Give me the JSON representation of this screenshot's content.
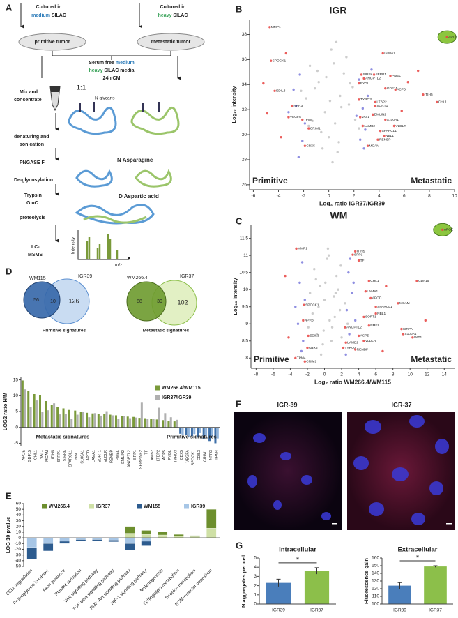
{
  "panels": [
    "A",
    "B",
    "C",
    "D",
    "E",
    "F",
    "G"
  ],
  "diagram": {
    "cultured_left": "Cultured in",
    "medium": "medium",
    "silac": "SILAC",
    "cultured_right": "Cultured in",
    "heavy": "heavy",
    "dish_left": "primitive tumor",
    "dish_right": "metastatic tumor",
    "serum_free": "Serum free",
    "media_medium": "medium",
    "media_heavy": "heavy",
    "silac_media": "SILAC media",
    "cm": "24h CM",
    "mix": "Mix and",
    "concentrate": "concentrate",
    "ratio": "1:1",
    "glycans": "N glycans",
    "denaturing": "denaturing and",
    "sonication": "sonication",
    "pngase": "PNGASE F",
    "asparagine": "N Asparagine",
    "deglyco": "De-glycosylation",
    "trypsin": "Trypsin",
    "gluc": "GluC",
    "aspartic": "D Aspartic acid",
    "proteolysis": "proteolysis",
    "lc": "LC-",
    "msms": "MSMS",
    "intensity": "Intensity",
    "mz": "m/z"
  },
  "venn": [
    {
      "left": "WM115",
      "right": "IGR39",
      "left_only": 56,
      "both": 10,
      "right_only": 126,
      "caption": "Primitive signatures"
    },
    {
      "left": "WM266.4",
      "right": "IGR37",
      "left_only": 88,
      "both": 30,
      "right_only": 102,
      "caption": "Metastatic signatures"
    }
  ],
  "images": [
    "IGR-39",
    "IGR-37"
  ],
  "chart_data": [
    {
      "type": "scatter",
      "title": "IGR",
      "xlabel": "Log₂ ratio IGR37/IGR39",
      "ylabel": "Log₁₀ intensity",
      "xlim": [
        -6.3,
        10
      ],
      "ylim": [
        25.6,
        39.2
      ],
      "xticks": [
        -6,
        -4,
        -2,
        0,
        2,
        4,
        6,
        8,
        10
      ],
      "yticks": [
        26,
        28,
        30,
        32,
        34,
        36,
        38
      ],
      "annotations": [
        "Primitive",
        "Metastatic"
      ],
      "annotation_colors": [
        "#2a7ab8",
        "#3aa35a"
      ],
      "series": [
        {
          "color": "#c4c4c4",
          "x": [
            -1.5,
            -0.8,
            0.2,
            0.9,
            1.6,
            -0.3,
            0.5,
            -1.1,
            1.2,
            2.1,
            -1.8,
            0.0,
            0.7,
            -0.6,
            1.9,
            -1.3,
            0.4,
            1.0,
            -0.2,
            2.4,
            -2.2,
            0.8,
            -0.9,
            1.4,
            0.1,
            -0.5,
            1.7,
            -1.6,
            0.6,
            0.3
          ],
          "y": [
            35.5,
            34.2,
            36.8,
            33.1,
            32.4,
            31.8,
            30.9,
            33.7,
            34.9,
            31.2,
            32.9,
            29.8,
            28.6,
            30.2,
            33.8,
            31.1,
            35.7,
            32.2,
            34.6,
            30.5,
            33.5,
            29.4,
            35.1,
            36.2,
            32.7,
            28.9,
            34.1,
            30.7,
            37.4,
            27.8
          ]
        },
        {
          "color": "#7b7bdc",
          "x": [
            -2.3,
            -2.6,
            -1.9,
            -2.8,
            -2.1,
            2.4,
            2.7,
            2.9,
            2.2,
            3.1,
            -3.2,
            2.5,
            -2.4,
            3.4,
            2.8
          ],
          "y": [
            34.8,
            32.3,
            30.9,
            33.6,
            29.5,
            34.4,
            32.1,
            30.4,
            31.5,
            33.1,
            31.8,
            29.6,
            28.2,
            35.2,
            28.9
          ]
        },
        {
          "color": "#e8423f",
          "highlight_color": "#8cc63f",
          "x": [
            9.4,
            -4.7,
            -4.6,
            -4.3,
            -2.9,
            -3.2,
            -2.1,
            -1.6,
            -1.9,
            4.3,
            2.6,
            2.8,
            3.6,
            4.9,
            2.4,
            4.5,
            5.3,
            7.5,
            8.6,
            2.4,
            3.7,
            3.7,
            3.5,
            2.5,
            4.5,
            2.7,
            5.2,
            4.1,
            4.4,
            3.9,
            3.1,
            -5.2,
            -3.8,
            -4.9,
            6.3,
            5.8,
            7.1,
            -3.4
          ],
          "y": [
            37.8,
            38.6,
            35.9,
            33.5,
            32.3,
            31.4,
            31.2,
            30.5,
            29.1,
            36.5,
            34.8,
            34.5,
            34.8,
            34.7,
            34.1,
            33.7,
            33.6,
            33.2,
            32.6,
            32.8,
            32.6,
            32.3,
            31.6,
            31.4,
            31.2,
            30.7,
            30.7,
            30.3,
            29.9,
            29.6,
            29.1,
            34.1,
            29.8,
            31.7,
            34.2,
            31.9,
            35.1,
            36.5
          ],
          "labels": [
            "APOE",
            "MMP1",
            "SPOCK1",
            "EDIL3",
            "NPR3",
            "VEGFA",
            "TPM4",
            "CRIM1",
            "CBX5",
            "LAMA1",
            "SIRPA",
            "ANGPTL2",
            "SFRP1",
            "PMEL",
            "PYGL",
            "GDF15",
            "ACP5",
            "ITIH5",
            "CHL1",
            "TYRO3",
            "LTBP2",
            "SORT1",
            "EMLIN2",
            "VAT1",
            "S100A1",
            "LAMB2",
            "VLDLR",
            "SPARCL1",
            "NBL1",
            "RENBP",
            "MCAM",
            null,
            null,
            null,
            null,
            null,
            null,
            null
          ]
        }
      ]
    },
    {
      "type": "scatter",
      "title": "WM",
      "xlabel": "Log₂ ratio WM266.4/WM115",
      "ylabel": "Log₁₀ intensity",
      "xlim": [
        -8.6,
        15.2
      ],
      "ylim": [
        7.7,
        11.9
      ],
      "xticks": [
        -8,
        -6,
        -4,
        -2,
        0,
        2,
        4,
        6,
        8,
        10,
        12,
        14
      ],
      "yticks": [
        8,
        8.5,
        9,
        9.5,
        10,
        10.5,
        11,
        11.5
      ],
      "annotations": [
        "Primitive",
        "Metastatic"
      ],
      "annotation_colors": [
        "#2a7ab8",
        "#3aa35a"
      ],
      "series": [
        {
          "color": "#c4c4c4",
          "x": [
            -1.2,
            -0.5,
            0.3,
            1.1,
            1.8,
            -1.7,
            0.6,
            -0.9,
            1.4,
            2.4,
            -0.2,
            0.9,
            -1.4,
            2.0,
            0.1,
            -0.7,
            1.6,
            -1.9,
            0.4,
            1.2,
            -0.4,
            2.7,
            -1.0,
            0.8,
            0.0,
            1.9,
            -1.5,
            0.5,
            -0.1,
            1.3
          ],
          "y": [
            10.6,
            10.1,
            10.9,
            9.8,
            9.4,
            9.9,
            9.1,
            8.7,
            10.4,
            9.6,
            8.4,
            8.9,
            9.3,
            8.6,
            10.2,
            9.5,
            10.0,
            8.9,
            11.2,
            9.2,
            8.1,
            9.0,
            10.3,
            8.5,
            9.7,
            10.7,
            8.3,
            11.0,
            8.8,
            9.9
          ]
        },
        {
          "color": "#7b7bdc",
          "x": [
            -2.6,
            -2.9,
            -2.3,
            -3.1,
            -2.5,
            2.8,
            3.2,
            2.6,
            3.6,
            2.9,
            -2.7,
            3.0,
            -3.4,
            2.5,
            3.4
          ],
          "y": [
            10.8,
            10.2,
            9.7,
            9.0,
            8.5,
            10.5,
            9.9,
            9.4,
            9.1,
            8.7,
            8.2,
            10.9,
            9.5,
            8.1,
            10.2
          ]
        },
        {
          "color": "#e8423f",
          "highlight_color": "#8cc63f",
          "x": [
            13.8,
            -3.3,
            3.6,
            3.3,
            4.0,
            10.8,
            5.2,
            4.8,
            5.4,
            8.6,
            6.0,
            6.0,
            4.6,
            5.2,
            9.0,
            9.2,
            10.3,
            2.4,
            4.0,
            4.6,
            2.2,
            3.6,
            2.5,
            -2.4,
            -2.5,
            -1.9,
            -2.0,
            -3.4,
            -2.3,
            -4.6,
            7.2,
            11.8,
            -4.2,
            6.8
          ],
          "y": [
            11.75,
            11.2,
            11.12,
            11.02,
            10.85,
            10.25,
            10.25,
            9.95,
            9.75,
            9.6,
            9.5,
            9.3,
            9.2,
            8.95,
            8.85,
            8.7,
            8.6,
            8.9,
            8.65,
            8.5,
            8.3,
            8.25,
            8.45,
            9.55,
            9.1,
            8.65,
            8.3,
            8.0,
            7.9,
            10.4,
            10.1,
            9.1,
            8.6,
            8.2
          ],
          "labels": [
            "APOE",
            "MMP1",
            "ITIH5",
            "SPP1",
            "TF",
            "GDF15",
            "CHL1",
            "LAMA1",
            "APOD",
            "MCAM",
            "SPARCL1",
            "NBL1",
            "SORT1",
            "PMEL",
            "SIRPA",
            "S100A1",
            "VAT1",
            "ANGPTL2",
            "ACP5",
            "VLDLR",
            "TYRO3",
            "RENBP",
            "LAMB2",
            "SPOCK1",
            "NPR3",
            "EDIL3",
            "CBX5",
            "TPM4",
            "CRIM1",
            null,
            null,
            null,
            null,
            null
          ]
        }
      ]
    },
    {
      "type": "bar",
      "ylabel": "LOG2 ratio H/M",
      "ylim": [
        -6,
        16
      ],
      "yticks": [
        -5,
        0,
        5,
        10,
        15
      ],
      "categories": [
        "APOE",
        "GDF15",
        "CHL1",
        "VAT1",
        "MCAM",
        "ITIH5",
        "SFRP1",
        "SIRPA",
        "SPARCL1",
        "NBL1",
        "S100A1",
        "APOD",
        "LAMA1",
        "SORT1",
        "VLDLR",
        "RENBP",
        "PMEL",
        "EMLIN2",
        "ANGPTL2",
        "SPP1",
        "SERPINE2",
        "TF",
        "LAMB2",
        "LTBP2",
        "ACP5",
        "PYGL",
        "TYRO3",
        "CBX5",
        "VEGFA",
        "SPOCK1",
        "EDIL3",
        "CRIM1",
        "NPR3",
        "TPM4"
      ],
      "series": [
        {
          "name": "WM266.4/WM115",
          "color": "#7a9a3a",
          "negative_color": "#3d6fa8",
          "values": [
            14.8,
            11.5,
            10.5,
            10.2,
            8.3,
            7.2,
            6.5,
            6.0,
            5.5,
            5.3,
            5.0,
            4.6,
            4.4,
            4.3,
            4.2,
            4.0,
            3.8,
            3.6,
            3.4,
            3.3,
            3.0,
            2.9,
            2.7,
            2.5,
            2.3,
            2.1,
            1.9,
            -2.0,
            -2.4,
            -2.8,
            -3.2,
            -3.6,
            -4.3,
            -5.0
          ]
        },
        {
          "name": "IGR37/IGR39",
          "color": "#b0b0b0",
          "negative_color": "#8fb3dc",
          "values": [
            12.0,
            6.5,
            8.5,
            4.8,
            5.4,
            7.6,
            4.1,
            4.3,
            2.8,
            4.0,
            4.9,
            3.2,
            4.5,
            3.7,
            5.1,
            3.8,
            2.7,
            3.6,
            2.9,
            3.1,
            7.8,
            2.6,
            2.8,
            6.2,
            4.5,
            3.2,
            2.4,
            -2.3,
            -3.1,
            -2.1,
            -1.8,
            -2.6,
            -3.0,
            -3.5
          ]
        }
      ],
      "annotations": [
        "Metastatic signatures",
        "Primitive signatures"
      ],
      "annotation_colors": [
        "#6d8f2e",
        "#2a7ab8"
      ]
    },
    {
      "type": "bar",
      "stacked": true,
      "ylabel": "LOG 10 pvalue",
      "ylim": [
        -50,
        60
      ],
      "yticks": [
        -50,
        -40,
        -30,
        -20,
        -10,
        0,
        10,
        20,
        30,
        40,
        50,
        60
      ],
      "categories": [
        "ECM degradation",
        "Proteoglycans in cancer",
        "Axon guidance",
        "Platelet activation",
        "Wnt signaling pathway",
        "TGF-beta signaling pathway",
        "PI3K-Akt signaling pathway",
        "HIF-1 signaling pathway",
        "Melanogenesis",
        "Sphingolipid metabolism",
        "Tyrosine metabolism",
        "ECM-receptor deposition"
      ],
      "series": [
        {
          "name": "WM266.4",
          "color": "#6d8f2e",
          "values": [
            0,
            0,
            0,
            0,
            0,
            0,
            12,
            7,
            6,
            3,
            2,
            33
          ]
        },
        {
          "name": "IGR37",
          "color": "#cfe0a6",
          "values": [
            0,
            0,
            0,
            0,
            0,
            0,
            8,
            6,
            5,
            3,
            2,
            17
          ]
        },
        {
          "name": "WM155",
          "color": "#2d5c8f",
          "values": [
            -20,
            -13,
            -4,
            -3,
            -2,
            -3,
            -11,
            -8,
            0,
            0,
            0,
            0
          ]
        },
        {
          "name": "IGR39",
          "color": "#a7c6e6",
          "values": [
            -17,
            -10,
            -6,
            -3,
            -3,
            -4,
            -10,
            -6,
            0,
            0,
            0,
            0
          ]
        }
      ]
    },
    {
      "type": "bar",
      "title": "Intracellular",
      "ylabel": "N aggregates per cell",
      "categories": [
        "IGR39",
        "IGR37"
      ],
      "values": [
        2.3,
        3.6
      ],
      "errors": [
        0.4,
        0.35
      ],
      "colors": [
        "#4a7ebb",
        "#8cbf4a"
      ],
      "ylim": [
        0,
        5
      ],
      "yticks": [
        0,
        1,
        2,
        3,
        4,
        5
      ],
      "annotation": "*"
    },
    {
      "type": "bar",
      "title": "Extracellular",
      "ylabel": "Fluorescence gain",
      "categories": [
        "IGR39",
        "IGR37"
      ],
      "values": [
        124,
        149
      ],
      "errors": [
        4,
        1
      ],
      "colors": [
        "#4a7ebb",
        "#8cbf4a"
      ],
      "ylim": [
        100,
        160
      ],
      "yticks": [
        100,
        110,
        120,
        130,
        140,
        150,
        160
      ],
      "annotation": "*"
    }
  ]
}
